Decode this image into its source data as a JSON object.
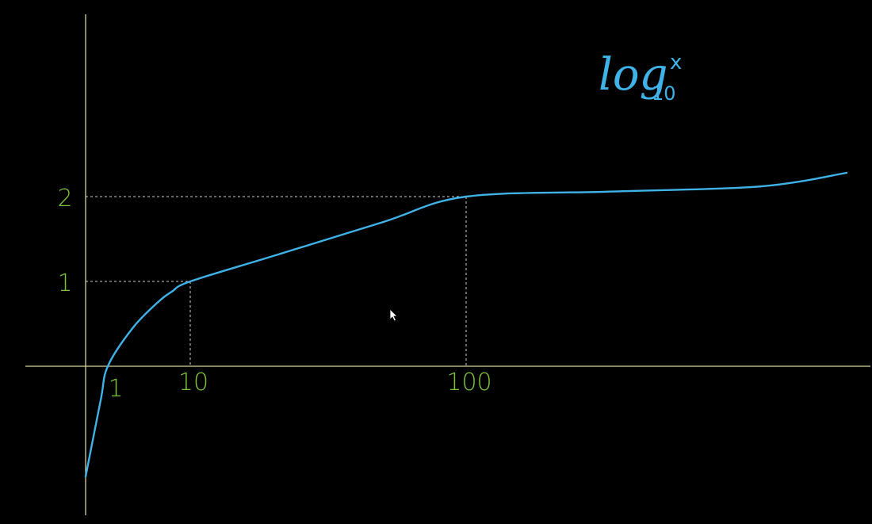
{
  "chart_data": {
    "type": "line",
    "title": {
      "log": "log",
      "base": "10",
      "arg": "x"
    },
    "x_marks": [
      {
        "value": 1,
        "label": "1"
      },
      {
        "value": 10,
        "label": "10"
      },
      {
        "value": 100,
        "label": "100"
      }
    ],
    "y_marks": [
      {
        "value": 1,
        "label": "1"
      },
      {
        "value": 2,
        "label": "2"
      }
    ],
    "series": [
      {
        "x": [
          0.5,
          0.8,
          1,
          2,
          4,
          6,
          10,
          20,
          50,
          100,
          200,
          400,
          600
        ],
        "y": [
          -1.3,
          -0.4,
          0,
          0.45,
          0.75,
          0.88,
          1,
          1.3,
          1.7,
          2,
          2.06,
          2.12,
          2.28
        ]
      }
    ],
    "guides": true,
    "colors": {
      "background": "#000000",
      "axis": "#d9d29a",
      "curve": "#3fb2e8",
      "tick_label": "#7ac23a",
      "guide": "#cfcfcf",
      "title": "#3fb2e8"
    }
  },
  "cursor_icon": "arrow-cursor-icon"
}
